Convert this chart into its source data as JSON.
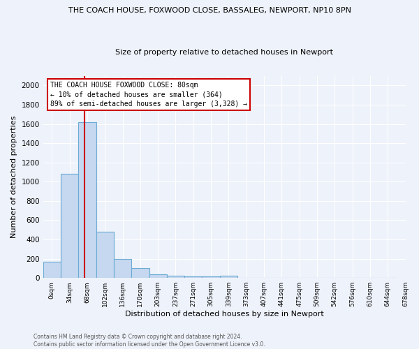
{
  "title1": "THE COACH HOUSE, FOXWOOD CLOSE, BASSALEG, NEWPORT, NP10 8PN",
  "title2": "Size of property relative to detached houses in Newport",
  "xlabel": "Distribution of detached houses by size in Newport",
  "ylabel": "Number of detached properties",
  "bin_labels": [
    "0sqm",
    "34sqm",
    "68sqm",
    "102sqm",
    "136sqm",
    "170sqm",
    "203sqm",
    "237sqm",
    "271sqm",
    "305sqm",
    "339sqm",
    "373sqm",
    "407sqm",
    "441sqm",
    "475sqm",
    "509sqm",
    "542sqm",
    "576sqm",
    "610sqm",
    "644sqm",
    "678sqm"
  ],
  "bar_heights": [
    165,
    1085,
    1620,
    480,
    200,
    100,
    40,
    25,
    15,
    15,
    20,
    0,
    0,
    0,
    0,
    0,
    0,
    0,
    0,
    0
  ],
  "bar_color": "#c5d8f0",
  "bar_edge_color": "#6aaad4",
  "marker_color": "#cc0000",
  "annotation_text": "THE COACH HOUSE FOXWOOD CLOSE: 80sqm\n← 10% of detached houses are smaller (364)\n89% of semi-detached houses are larger (3,328) →",
  "footnote1": "Contains HM Land Registry data © Crown copyright and database right 2024.",
  "footnote2": "Contains public sector information licensed under the Open Government Licence v3.0.",
  "ylim": [
    0,
    2100
  ],
  "yticks": [
    0,
    200,
    400,
    600,
    800,
    1000,
    1200,
    1400,
    1600,
    1800,
    2000
  ],
  "bg_color": "#eef2fa",
  "grid_color": "#ffffff"
}
